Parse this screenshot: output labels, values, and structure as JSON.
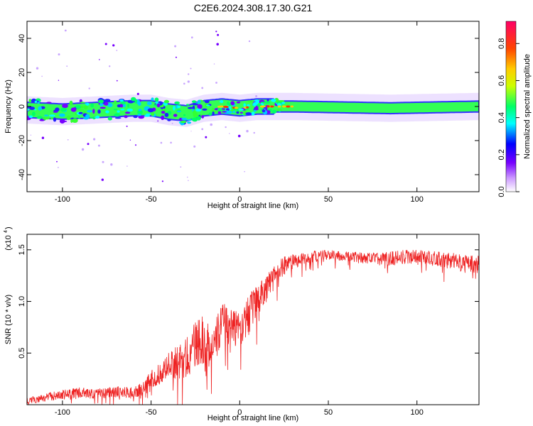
{
  "chart_data": [
    {
      "type": "heatmap",
      "title": "C2E6.2024.308.17.30.G21",
      "xlabel": "Height of straight line (km)",
      "ylabel": "Frequency (Hz)",
      "xlim": [
        -120,
        135
      ],
      "ylim": [
        -50,
        50
      ],
      "xticks": [
        -100,
        -50,
        0,
        50,
        100
      ],
      "yticks": [
        40,
        20,
        0,
        -20,
        -40
      ],
      "grid": false,
      "band_center_hz": [
        {
          "x": -120,
          "y": -2
        },
        {
          "x": -100,
          "y": -3
        },
        {
          "x": -80,
          "y": -2
        },
        {
          "x": -60,
          "y": -1
        },
        {
          "x": -50,
          "y": -1
        },
        {
          "x": -40,
          "y": -3
        },
        {
          "x": -30,
          "y": -4
        },
        {
          "x": -20,
          "y": -1
        },
        {
          "x": -10,
          "y": 0
        },
        {
          "x": 0,
          "y": -1
        },
        {
          "x": 10,
          "y": 0
        },
        {
          "x": 30,
          "y": 0
        },
        {
          "x": 85,
          "y": -1
        },
        {
          "x": 135,
          "y": 0
        }
      ],
      "colorbar": {
        "label": "Normalized spectral amplitude",
        "ticks": [
          0.0,
          0.2,
          0.4,
          0.6,
          0.8
        ],
        "tick_labels": [
          "0.0",
          "0.2",
          "0.4",
          "0.6",
          "0.8"
        ],
        "range": [
          0,
          0.92
        ],
        "colormap": [
          "#ffffff",
          "#cc99ff",
          "#7700ff",
          "#0000ff",
          "#00ffff",
          "#00ff66",
          "#ccff00",
          "#ffcc00",
          "#ff4400",
          "#ff0066"
        ]
      }
    },
    {
      "type": "line",
      "title": "",
      "xlabel": "Height of straight line (km)",
      "ylabel": "SNR (10 * v/v)",
      "multiplier_label": "(x10",
      "multiplier_exp": "4",
      "xlim": [
        -120,
        135
      ],
      "ylim": [
        0,
        16500
      ],
      "xticks": [
        -100,
        -50,
        0,
        50,
        100
      ],
      "yticks": [
        15000,
        10000,
        5000
      ],
      "ytick_labels": [
        "1.5",
        "1.0",
        "0.5"
      ],
      "series_color": "#ee2222",
      "series": [
        {
          "x": [
            -120,
            -110,
            -100,
            -90,
            -80,
            -70,
            -60,
            -55,
            -50,
            -45,
            -40,
            -35,
            -30,
            -25,
            -20,
            -15,
            -10,
            -5,
            0,
            5,
            10,
            15,
            20,
            25,
            30,
            40,
            50,
            60,
            70,
            80,
            90,
            100,
            110,
            120,
            130,
            135
          ],
          "y": [
            500,
            900,
            1200,
            1400,
            1300,
            1500,
            1500,
            1800,
            3000,
            3500,
            4500,
            5000,
            5500,
            7000,
            7500,
            6500,
            9000,
            8500,
            9000,
            9500,
            11000,
            12000,
            13000,
            14000,
            14200,
            14600,
            14800,
            14600,
            14500,
            14400,
            14600,
            14700,
            14500,
            14300,
            14000,
            14100
          ],
          "amp": [
            400,
            500,
            600,
            700,
            600,
            700,
            700,
            800,
            1100,
            1300,
            1500,
            2200,
            2500,
            2800,
            3000,
            2500,
            2500,
            2500,
            2800,
            2500,
            2000,
            1800,
            1500,
            1200,
            900,
            700,
            600,
            600,
            700,
            800,
            900,
            800,
            900,
            1000,
            1200,
            1200
          ]
        }
      ]
    }
  ]
}
